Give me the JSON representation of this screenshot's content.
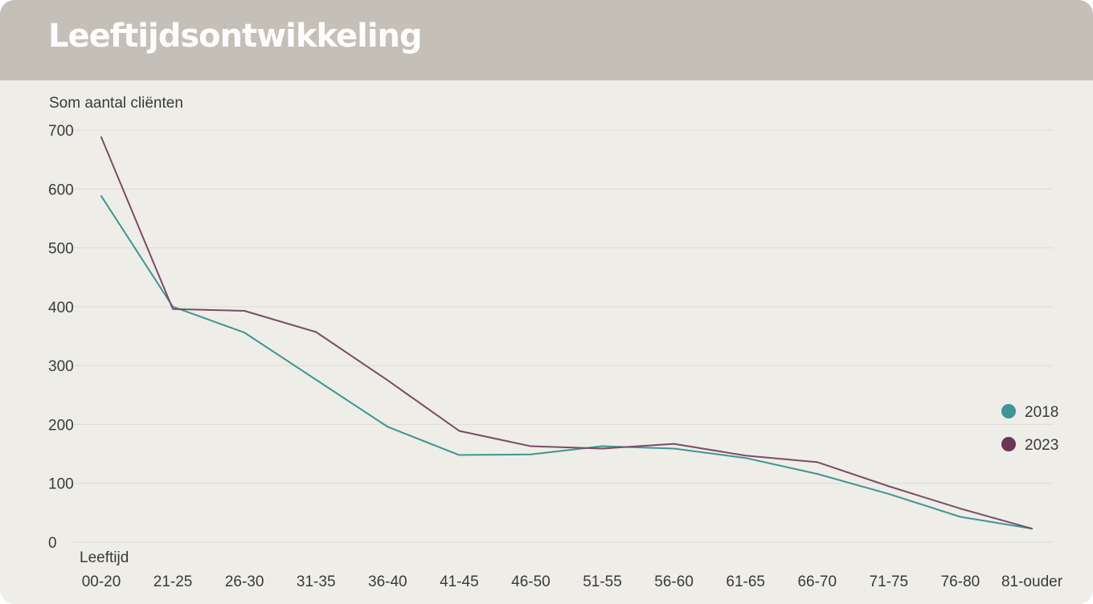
{
  "header": {
    "title": "Leeftijdsontwikkeling"
  },
  "chart_data": {
    "type": "line",
    "ylabel": "Som aantal cliënten",
    "xlabel": "Leeftijd",
    "categories": [
      "00-20",
      "21-25",
      "26-30",
      "31-35",
      "36-40",
      "41-45",
      "46-50",
      "51-55",
      "56-60",
      "61-65",
      "66-70",
      "71-75",
      "76-80",
      "81-ouder"
    ],
    "ylim": [
      0,
      700
    ],
    "yticks": [
      0,
      100,
      200,
      300,
      400,
      500,
      600,
      700
    ],
    "grid": true,
    "legend_position": "right",
    "series": [
      {
        "name": "2018",
        "color": "#3d9595",
        "values": [
          588,
          400,
          356,
          276,
          196,
          148,
          149,
          163,
          159,
          143,
          116,
          82,
          43,
          23
        ]
      },
      {
        "name": "2023",
        "color": "#7a4c66",
        "values": [
          688,
          396,
          393,
          357,
          275,
          189,
          163,
          159,
          167,
          147,
          136,
          95,
          57,
          23
        ]
      }
    ],
    "legend_marker_colors": {
      "2018": "#3d9595",
      "2023": "#6b3558"
    }
  }
}
